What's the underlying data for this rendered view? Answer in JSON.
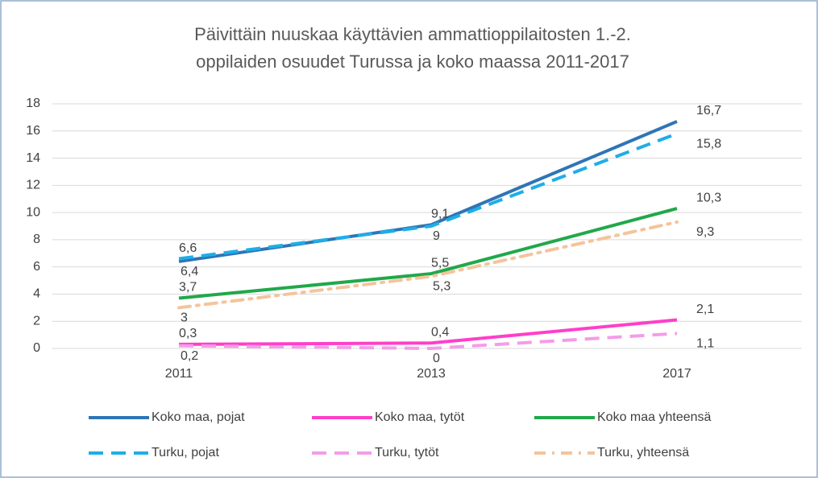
{
  "chart_data": {
    "type": "line",
    "title": [
      "Päivittäin nuuskaa käyttävien ammattioppilaitosten 1.-2.",
      "oppilaiden osuudet Turussa ja koko maassa 2011-2017"
    ],
    "categories": [
      "2011",
      "2013",
      "2017"
    ],
    "ylim": [
      0,
      18
    ],
    "yticks": [
      0,
      2,
      4,
      6,
      8,
      10,
      12,
      14,
      16,
      18
    ],
    "grid": true,
    "series": [
      {
        "name": "Koko maa, pojat",
        "color": "#2e75b6",
        "dash": "solid",
        "values": [
          6.4,
          9.1,
          16.7
        ],
        "value_labels": [
          "6,4",
          "9,1",
          "16,7"
        ]
      },
      {
        "name": "Koko maa, tytöt",
        "color": "#ff3fc8",
        "dash": "solid",
        "values": [
          0.3,
          0.4,
          2.1
        ],
        "value_labels": [
          "0,3",
          "0,4",
          "2,1"
        ]
      },
      {
        "name": "Koko maa yhteensä",
        "color": "#21a84a",
        "dash": "solid",
        "values": [
          3.7,
          5.5,
          10.3
        ],
        "value_labels": [
          "3,7",
          "5,5",
          "10,3"
        ]
      },
      {
        "name": "Turku, pojat",
        "color": "#1eaee8",
        "dash": "dash",
        "values": [
          6.6,
          9,
          15.8
        ],
        "value_labels": [
          "6,6",
          "9",
          "15,8"
        ]
      },
      {
        "name": "Turku, tytöt",
        "color": "#f49ce8",
        "dash": "dash",
        "values": [
          0.2,
          0,
          1.1
        ],
        "value_labels": [
          "0,2",
          "0",
          "1,1"
        ]
      },
      {
        "name": "Turku, yhteensä",
        "color": "#f4c49c",
        "dash": "dashdot",
        "values": [
          3,
          5.3,
          9.3
        ],
        "value_labels": [
          "3",
          "5,3",
          "9,3"
        ]
      }
    ]
  }
}
